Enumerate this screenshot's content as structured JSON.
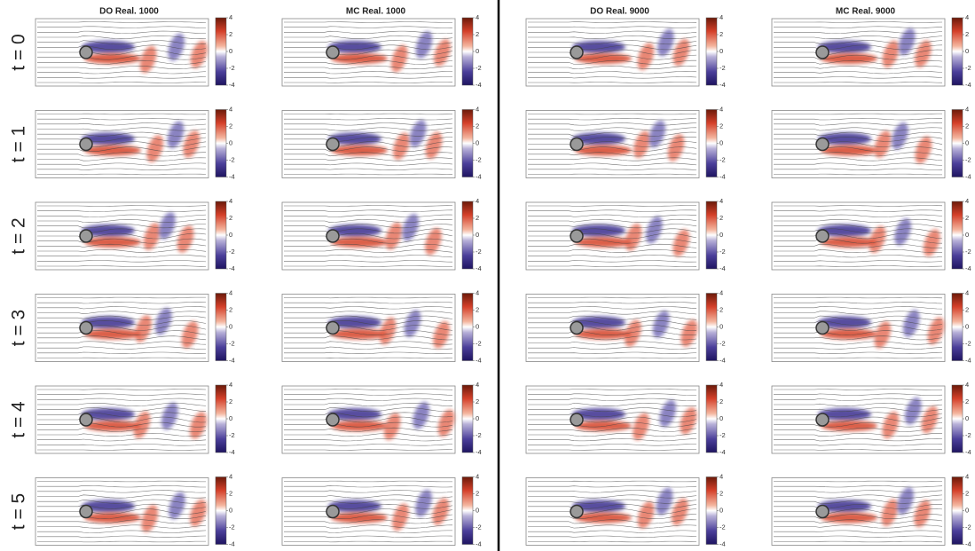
{
  "columns": [
    {
      "title": "DO Real. 1000"
    },
    {
      "title": "MC Real. 1000"
    },
    {
      "title": "DO Real. 9000"
    },
    {
      "title": "MC Real. 9000"
    }
  ],
  "rows": [
    {
      "label": "t = 0"
    },
    {
      "label": "t = 1"
    },
    {
      "label": "t = 2"
    },
    {
      "label": "t = 3"
    },
    {
      "label": "t = 4"
    },
    {
      "label": "t = 5"
    }
  ],
  "colorbar": {
    "ticks": [
      4,
      2,
      0,
      -2,
      -4
    ]
  }
}
